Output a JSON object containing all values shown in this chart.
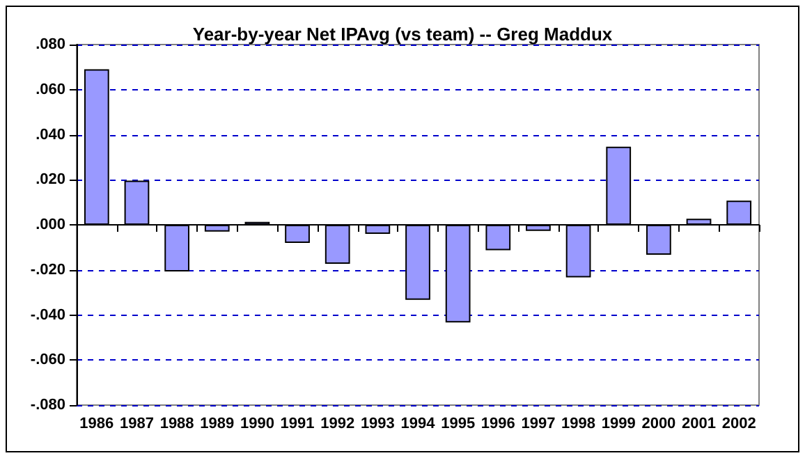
{
  "chart_data": {
    "type": "bar",
    "title": "Year-by-year Net IPAvg (vs team) -- Greg Maddux",
    "categories": [
      "1986",
      "1987",
      "1988",
      "1989",
      "1990",
      "1991",
      "1992",
      "1993",
      "1994",
      "1995",
      "1996",
      "1997",
      "1998",
      "1999",
      "2000",
      "2001",
      "2002"
    ],
    "values": [
      0.069,
      0.0196,
      -0.0207,
      -0.003,
      0.0013,
      -0.008,
      -0.0173,
      -0.004,
      -0.0333,
      -0.0433,
      -0.0113,
      -0.0027,
      -0.0233,
      0.0347,
      -0.0133,
      0.0027,
      0.0107
    ],
    "color": "#9999ff",
    "ylim": [
      -0.08,
      0.08
    ],
    "yticks": [
      {
        "value": -0.08,
        "label": "-.080"
      },
      {
        "value": -0.06,
        "label": "-.060"
      },
      {
        "value": -0.04,
        "label": "-.040"
      },
      {
        "value": -0.02,
        "label": "-.020"
      },
      {
        "value": 0,
        "label": ".000"
      },
      {
        "value": 0.02,
        "label": ".020"
      },
      {
        "value": 0.04,
        "label": ".040"
      },
      {
        "value": 0.06,
        "label": ".060"
      },
      {
        "value": 0.08,
        "label": ".080"
      }
    ],
    "grid": "y"
  }
}
